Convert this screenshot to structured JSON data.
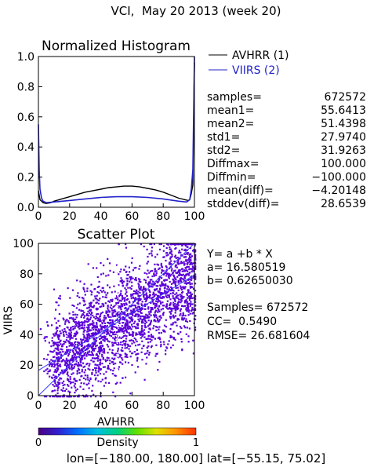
{
  "header": {
    "title": "VCI,  May 20 2013 (week 20)"
  },
  "chart_data": [
    {
      "type": "line",
      "title": "Normalized Histogram",
      "xlim": [
        0,
        100
      ],
      "ylim": [
        0,
        1.0
      ],
      "x_ticks": [
        "0",
        "20",
        "40",
        "60",
        "80",
        "100"
      ],
      "y_ticks": [
        "0.0",
        "0.2",
        "0.4",
        "0.6",
        "0.8",
        "1.0"
      ],
      "legend_position": "top-right",
      "series": [
        {
          "name": "AVHRR (1)",
          "color": "#000000",
          "x": [
            0,
            1,
            2,
            3,
            5,
            8,
            10,
            15,
            20,
            25,
            30,
            35,
            40,
            45,
            50,
            55,
            60,
            65,
            70,
            75,
            80,
            85,
            90,
            94,
            96,
            97,
            98,
            99,
            100
          ],
          "y": [
            0.11,
            0.05,
            0.04,
            0.03,
            0.025,
            0.03,
            0.04,
            0.055,
            0.07,
            0.085,
            0.1,
            0.11,
            0.12,
            0.13,
            0.135,
            0.14,
            0.14,
            0.135,
            0.125,
            0.115,
            0.1,
            0.08,
            0.06,
            0.05,
            0.045,
            0.05,
            0.09,
            0.15,
            0.96
          ]
        },
        {
          "name": "VIIRS (2)",
          "color": "#2222cc",
          "x": [
            0,
            0.5,
            1,
            2,
            3,
            5,
            10,
            20,
            30,
            40,
            50,
            60,
            70,
            80,
            90,
            95,
            97,
            98,
            99,
            100
          ],
          "y": [
            0.55,
            0.25,
            0.12,
            0.06,
            0.04,
            0.03,
            0.035,
            0.045,
            0.055,
            0.065,
            0.07,
            0.07,
            0.065,
            0.055,
            0.04,
            0.035,
            0.05,
            0.12,
            0.25,
            1.0
          ]
        }
      ]
    },
    {
      "type": "scatter",
      "title": "Scatter Plot",
      "xlabel": "AVHRR",
      "ylabel": "VIIRS",
      "xlim": [
        0,
        100
      ],
      "ylim": [
        0,
        100
      ],
      "x_ticks": [
        "0",
        "20",
        "40",
        "60",
        "80",
        "100"
      ],
      "y_ticks": [
        "0",
        "20",
        "40",
        "60",
        "80",
        "100"
      ],
      "point_color": "#5a00d8",
      "fit_line": {
        "a": 16.580519,
        "b": 0.6265003
      },
      "density_colorbar": {
        "label": "Density",
        "min_label": "0",
        "max_label": "1",
        "colors": [
          "#4b0082",
          "#3020d0",
          "#0070ff",
          "#00c0e0",
          "#00d080",
          "#60e000",
          "#e0e000",
          "#ff9000",
          "#ff3000"
        ]
      }
    }
  ],
  "stats": [
    {
      "key": "samples=",
      "value": "672572"
    },
    {
      "key": "mean1=",
      "value": "55.6413"
    },
    {
      "key": "mean2=",
      "value": "51.4398"
    },
    {
      "key": "std1=",
      "value": "27.9740"
    },
    {
      "key": "std2=",
      "value": "31.9263"
    },
    {
      "key": "Diffmax=",
      "value": "100.000"
    },
    {
      "key": "Diffmin=",
      "value": "−100.000"
    },
    {
      "key": "mean(diff)=",
      "value": "−4.20148"
    },
    {
      "key": "stddev(diff)=",
      "value": "28.6539"
    }
  ],
  "regression": {
    "equation": "Y= a +b * X",
    "a_line": "a= 16.580519",
    "b_line": "b= 0.62650030",
    "samples_line": "Samples= 672572",
    "cc_line": "CC=  0.5490",
    "rmse_line": "RMSE= 26.681604"
  },
  "footer": {
    "range": "lon=[−180.00, 180.00] lat=[−55.15, 75.02]"
  }
}
